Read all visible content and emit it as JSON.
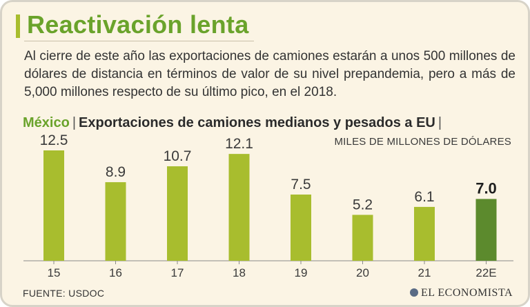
{
  "header": {
    "title": "Reactivación lenta",
    "intro": "Al cierre de este año las exportaciones de camiones estarán a unos 500 millones de dólares de distancia en términos de valor de su nivel prepandemia, pero a más de 5,000 millones respecto de su último pico, en el 2018."
  },
  "chart_title": {
    "country": "México",
    "separator": "|",
    "text": "Exportaciones de camiones medianos y pesados a EU",
    "trailing_separator": "|"
  },
  "chart_data": {
    "type": "bar",
    "title": "Exportaciones de camiones medianos y pesados a EU",
    "ylabel": "MILES DE MILLONES DE DÓLARES",
    "xlabel": "",
    "categories": [
      "15",
      "16",
      "17",
      "18",
      "19",
      "20",
      "21",
      "22E"
    ],
    "values": [
      12.5,
      8.9,
      10.7,
      12.1,
      7.5,
      5.2,
      6.1,
      7.0
    ],
    "value_labels": [
      "12.5",
      "8.9",
      "10.7",
      "12.1",
      "7.5",
      "5.2",
      "6.1",
      "7.0"
    ],
    "highlight_index": 7,
    "ylim": [
      0,
      12.5
    ],
    "grid": false
  },
  "colors": {
    "bar": "#a8bd2e",
    "bar_highlight": "#5c8a2d",
    "accent": "#6aa32b",
    "background": "#fbf4e4"
  },
  "footer": {
    "source": "FUENTE: USDOC",
    "brand": "EL ECONOMISTA",
    "brand_icon": "globe-icon"
  }
}
